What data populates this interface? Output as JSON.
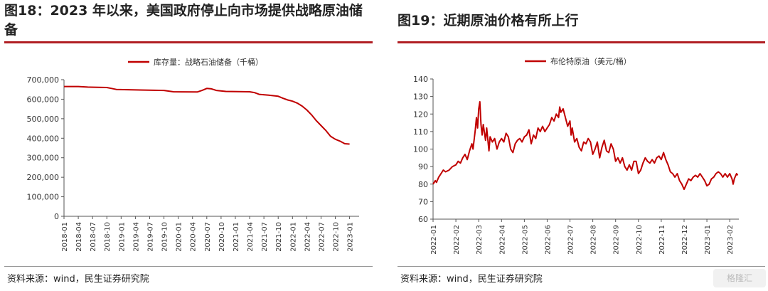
{
  "left": {
    "title": "图18：2023 年以来，美国政府停止向市场提供战略原油储备",
    "source": "资料来源：wind，民生证券研究院",
    "chart_data": {
      "type": "line",
      "legend": "库存量：战略石油储备（千桶）",
      "line_color": "#c00000",
      "ylim": [
        0,
        700000
      ],
      "yticks": [
        0,
        100000,
        200000,
        300000,
        400000,
        500000,
        600000,
        700000
      ],
      "ytick_labels": [
        "0",
        "100,000",
        "200,000",
        "300,000",
        "400,000",
        "500,000",
        "600,000",
        "700,000"
      ],
      "xtick_labels": [
        "2018-01",
        "2018-04",
        "2018-07",
        "2018-10",
        "2019-01",
        "2019-04",
        "2019-07",
        "2019-10",
        "2020-01",
        "2020-04",
        "2020-07",
        "2020-10",
        "2021-01",
        "2021-04",
        "2021-07",
        "2021-10",
        "2022-01",
        "2022-04",
        "2022-07",
        "2022-10",
        "2023-01"
      ],
      "x_range": [
        0,
        62
      ],
      "series": [
        {
          "points": [
            [
              0,
              665000
            ],
            [
              3,
              665000
            ],
            [
              5,
              662000
            ],
            [
              9,
              660000
            ],
            [
              10,
              655000
            ],
            [
              11,
              650000
            ],
            [
              16,
              647000
            ],
            [
              21,
              645000
            ],
            [
              23,
              638000
            ],
            [
              28,
              637000
            ],
            [
              29,
              645000
            ],
            [
              30,
              655000
            ],
            [
              31,
              653000
            ],
            [
              32,
              645000
            ],
            [
              34,
              640000
            ],
            [
              39,
              638000
            ],
            [
              40,
              634000
            ],
            [
              41,
              625000
            ],
            [
              43,
              621000
            ],
            [
              45,
              615000
            ],
            [
              46,
              605000
            ],
            [
              47,
              596000
            ],
            [
              48,
              590000
            ],
            [
              49,
              580000
            ],
            [
              50,
              565000
            ],
            [
              51,
              545000
            ],
            [
              52,
              520000
            ],
            [
              53,
              490000
            ],
            [
              54,
              465000
            ],
            [
              55,
              440000
            ],
            [
              56,
              410000
            ],
            [
              57,
              395000
            ],
            [
              58,
              385000
            ],
            [
              59,
              372000
            ],
            [
              60,
              370000
            ]
          ]
        }
      ]
    }
  },
  "right": {
    "title": "图19：近期原油价格有所上行",
    "source": "资料来源：wind，民生证券研究院",
    "chart_data": {
      "type": "line",
      "legend": "布伦特原油（美元/桶）",
      "line_color": "#c00000",
      "ylim": [
        60,
        140
      ],
      "yticks": [
        60,
        70,
        80,
        90,
        100,
        110,
        120,
        130,
        140
      ],
      "xtick_labels": [
        "2022-01",
        "2022-02",
        "2022-03",
        "2022-04",
        "2022-05",
        "2022-06",
        "2022-07",
        "2022-08",
        "2022-09",
        "2022-10",
        "2022-11",
        "2022-12",
        "2023-01",
        "2023-02"
      ],
      "x_range": [
        0,
        13.4
      ],
      "series": [
        {
          "points": [
            [
              0,
              80
            ],
            [
              0.1,
              82
            ],
            [
              0.15,
              81
            ],
            [
              0.25,
              84
            ],
            [
              0.35,
              86
            ],
            [
              0.45,
              88
            ],
            [
              0.55,
              87
            ],
            [
              0.7,
              88
            ],
            [
              0.85,
              90
            ],
            [
              1.0,
              91
            ],
            [
              1.1,
              93
            ],
            [
              1.2,
              92
            ],
            [
              1.3,
              95
            ],
            [
              1.4,
              97
            ],
            [
              1.5,
              94
            ],
            [
              1.6,
              99
            ],
            [
              1.7,
              103
            ],
            [
              1.75,
              100
            ],
            [
              1.85,
              111
            ],
            [
              1.9,
              118
            ],
            [
              1.95,
              112
            ],
            [
              2.0,
              123
            ],
            [
              2.05,
              127
            ],
            [
              2.1,
              114
            ],
            [
              2.15,
              108
            ],
            [
              2.2,
              114
            ],
            [
              2.3,
              105
            ],
            [
              2.35,
              112
            ],
            [
              2.45,
              99
            ],
            [
              2.5,
              107
            ],
            [
              2.6,
              104
            ],
            [
              2.7,
              106
            ],
            [
              2.8,
              100
            ],
            [
              2.9,
              104
            ],
            [
              3.0,
              106
            ],
            [
              3.1,
              104
            ],
            [
              3.2,
              109
            ],
            [
              3.3,
              107
            ],
            [
              3.4,
              100
            ],
            [
              3.5,
              98
            ],
            [
              3.6,
              103
            ],
            [
              3.7,
              105
            ],
            [
              3.8,
              106
            ],
            [
              3.9,
              104
            ],
            [
              4.0,
              107
            ],
            [
              4.1,
              108
            ],
            [
              4.2,
              111
            ],
            [
              4.3,
              103
            ],
            [
              4.4,
              108
            ],
            [
              4.5,
              106
            ],
            [
              4.6,
              112
            ],
            [
              4.7,
              110
            ],
            [
              4.8,
              113
            ],
            [
              4.9,
              110
            ],
            [
              5.0,
              112
            ],
            [
              5.1,
              114
            ],
            [
              5.2,
              118
            ],
            [
              5.3,
              116
            ],
            [
              5.4,
              120
            ],
            [
              5.5,
              118
            ],
            [
              5.55,
              124
            ],
            [
              5.6,
              121
            ],
            [
              5.7,
              123
            ],
            [
              5.8,
              118
            ],
            [
              5.9,
              113
            ],
            [
              6.0,
              116
            ],
            [
              6.05,
              108
            ],
            [
              6.1,
              112
            ],
            [
              6.2,
              104
            ],
            [
              6.3,
              106
            ],
            [
              6.4,
              101
            ],
            [
              6.5,
              99
            ],
            [
              6.6,
              104
            ],
            [
              6.7,
              103
            ],
            [
              6.8,
              106
            ],
            [
              6.9,
              104
            ],
            [
              7.0,
              97
            ],
            [
              7.1,
              100
            ],
            [
              7.2,
              104
            ],
            [
              7.3,
              95
            ],
            [
              7.4,
              101
            ],
            [
              7.5,
              105
            ],
            [
              7.6,
              99
            ],
            [
              7.7,
              98
            ],
            [
              7.8,
              103
            ],
            [
              7.9,
              100
            ],
            [
              8.0,
              93
            ],
            [
              8.1,
              95
            ],
            [
              8.2,
              92
            ],
            [
              8.3,
              95
            ],
            [
              8.4,
              90
            ],
            [
              8.5,
              88
            ],
            [
              8.6,
              91
            ],
            [
              8.7,
              88
            ],
            [
              8.8,
              93
            ],
            [
              8.9,
              93
            ],
            [
              9.0,
              86
            ],
            [
              9.1,
              88
            ],
            [
              9.2,
              92
            ],
            [
              9.3,
              95
            ],
            [
              9.4,
              93
            ],
            [
              9.5,
              92
            ],
            [
              9.6,
              94
            ],
            [
              9.7,
              92
            ],
            [
              9.8,
              95
            ],
            [
              9.9,
              96
            ],
            [
              10.0,
              94
            ],
            [
              10.1,
              98
            ],
            [
              10.2,
              94
            ],
            [
              10.3,
              91
            ],
            [
              10.4,
              87
            ],
            [
              10.5,
              86
            ],
            [
              10.6,
              84
            ],
            [
              10.7,
              86
            ],
            [
              10.8,
              82
            ],
            [
              10.9,
              80
            ],
            [
              11.0,
              77
            ],
            [
              11.1,
              80
            ],
            [
              11.2,
              83
            ],
            [
              11.3,
              82
            ],
            [
              11.4,
              84
            ],
            [
              11.5,
              85
            ],
            [
              11.6,
              84
            ],
            [
              11.7,
              86
            ],
            [
              11.8,
              84
            ],
            [
              11.9,
              82
            ],
            [
              12.0,
              79
            ],
            [
              12.1,
              80
            ],
            [
              12.2,
              83
            ],
            [
              12.3,
              84
            ],
            [
              12.4,
              86
            ],
            [
              12.5,
              87
            ],
            [
              12.6,
              86
            ],
            [
              12.7,
              84
            ],
            [
              12.8,
              86
            ],
            [
              12.9,
              84
            ],
            [
              13.0,
              86
            ],
            [
              13.1,
              83
            ],
            [
              13.15,
              80
            ],
            [
              13.2,
              83
            ],
            [
              13.3,
              86
            ],
            [
              13.35,
              85
            ]
          ]
        }
      ]
    }
  },
  "watermark": "格隆汇"
}
